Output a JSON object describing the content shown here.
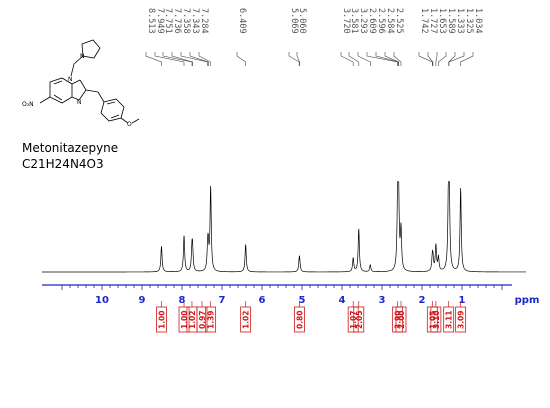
{
  "compound": {
    "name": "Metonitazepyne",
    "formula": "C21H24N4O3"
  },
  "structure_atoms": {
    "nitrogen": "N",
    "nitro": "O₂N",
    "methoxy": "O"
  },
  "chart_data": {
    "type": "line",
    "xlabel": "ppm",
    "xlim": [
      11.5,
      -0.6
    ],
    "x_axis_reversed": true,
    "xticks": [
      10,
      9,
      8,
      7,
      6,
      5,
      4,
      3,
      2,
      1
    ],
    "xtick_labels": [
      "10",
      "9",
      "8",
      "7",
      "6",
      "5",
      "4",
      "3",
      "2",
      "1"
    ],
    "grid": false,
    "peak_labels": [
      "8.513",
      "7.949",
      "7.751",
      "7.736",
      "7.358",
      "7.343",
      "7.284",
      "6.409",
      "5.069",
      "5.060",
      "3.720",
      "3.581",
      "3.293",
      "2.609",
      "2.596",
      "2.584",
      "2.525",
      "1.742",
      "1.727",
      "1.653",
      "1.589",
      "1.333",
      "1.325",
      "1.034"
    ],
    "peaks": [
      {
        "ppm": 8.513,
        "intensity": 0.3
      },
      {
        "ppm": 7.949,
        "intensity": 0.42
      },
      {
        "ppm": 7.751,
        "intensity": 0.23
      },
      {
        "ppm": 7.736,
        "intensity": 0.22
      },
      {
        "ppm": 7.358,
        "intensity": 0.23
      },
      {
        "ppm": 7.343,
        "intensity": 0.22
      },
      {
        "ppm": 7.284,
        "intensity": 0.97
      },
      {
        "ppm": 6.409,
        "intensity": 0.32
      },
      {
        "ppm": 5.069,
        "intensity": 0.1
      },
      {
        "ppm": 5.06,
        "intensity": 0.1
      },
      {
        "ppm": 3.72,
        "intensity": 0.16
      },
      {
        "ppm": 3.581,
        "intensity": 0.5
      },
      {
        "ppm": 3.293,
        "intensity": 0.08
      },
      {
        "ppm": 2.609,
        "intensity": 0.58
      },
      {
        "ppm": 2.596,
        "intensity": 0.54
      },
      {
        "ppm": 2.584,
        "intensity": 0.52
      },
      {
        "ppm": 2.525,
        "intensity": 0.47
      },
      {
        "ppm": 1.742,
        "intensity": 0.14
      },
      {
        "ppm": 1.727,
        "intensity": 0.13
      },
      {
        "ppm": 1.653,
        "intensity": 0.3
      },
      {
        "ppm": 1.589,
        "intensity": 0.16
      },
      {
        "ppm": 1.333,
        "intensity": 0.82
      },
      {
        "ppm": 1.325,
        "intensity": 1.0
      },
      {
        "ppm": 1.034,
        "intensity": 0.97
      }
    ],
    "integrals": [
      {
        "ppm": 8.513,
        "value": "1.00"
      },
      {
        "ppm": 7.949,
        "value": "1.00"
      },
      {
        "ppm": 7.751,
        "value": "1.02"
      },
      {
        "ppm": 7.5,
        "value": "0.97"
      },
      {
        "ppm": 7.284,
        "value": "1.39"
      },
      {
        "ppm": 6.409,
        "value": "1.02"
      },
      {
        "ppm": 5.065,
        "value": "0.80"
      },
      {
        "ppm": 3.72,
        "value": "1.07"
      },
      {
        "ppm": 3.581,
        "value": "2.05"
      },
      {
        "ppm": 2.609,
        "value": "3.90"
      },
      {
        "ppm": 2.525,
        "value": "2.00"
      },
      {
        "ppm": 1.742,
        "value": "1.05"
      },
      {
        "ppm": 1.653,
        "value": "3.10"
      },
      {
        "ppm": 1.333,
        "value": "3.11"
      },
      {
        "ppm": 1.034,
        "value": "3.09"
      }
    ],
    "colors": {
      "spectrum": "#000000",
      "axis": "#1a28c8",
      "integrals": "#d01818",
      "peak_labels": "#555555"
    }
  }
}
